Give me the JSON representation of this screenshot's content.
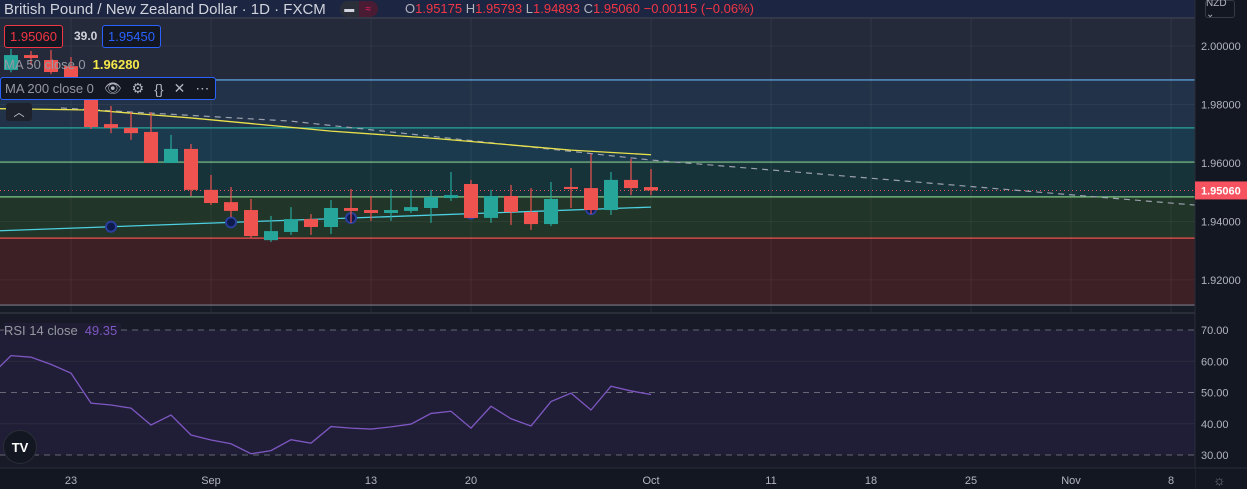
{
  "header": {
    "title": "British Pound / New Zealand Dollar · 1D · FXCM",
    "ohlc": {
      "o_label": "O",
      "o": "1.95175",
      "h_label": "H",
      "h": "1.95793",
      "l_label": "L",
      "l": "1.94893",
      "c_label": "C",
      "c": "1.95060",
      "change": "−0.00115 (−0.06%)"
    },
    "currency_button": "NZD ⌄"
  },
  "legend": {
    "sell_price": "1.95060",
    "spread": "39.0",
    "buy_price": "1.95450",
    "ma50": {
      "label": "MA 50 close 0",
      "value": "1.96280"
    },
    "ma200": {
      "label": "MA 200 close 0"
    },
    "rsi": {
      "label": "RSI 14 close",
      "value": "49.35"
    }
  },
  "colors": {
    "up": "#26a69a",
    "down": "#ef5350",
    "ma50": "#e9e24b",
    "ma200": "#4dd0e1",
    "rsi": "#7e57c2",
    "price_badge": "#f7525f"
  },
  "chart_data": [
    {
      "type": "candlestick",
      "title": "British Pound / New Zealand Dollar · 1D · FXCM",
      "price_axis": {
        "ticks": [
          "2.00000",
          "1.98000",
          "1.96000",
          "1.94000",
          "1.92000"
        ],
        "tick_values": [
          2.0,
          1.98,
          1.96,
          1.94,
          1.92
        ],
        "current_price": "1.95060",
        "current_value": 1.9506
      },
      "x_axis": {
        "labels": [
          {
            "text": "23",
            "index": 4
          },
          {
            "text": "Sep",
            "index": 11
          },
          {
            "text": "13",
            "index": 19
          },
          {
            "text": "20",
            "index": 24
          },
          {
            "text": "Oct",
            "index": 33
          },
          {
            "text": "11",
            "index": 39
          },
          {
            "text": "18",
            "index": 44
          },
          {
            "text": "25",
            "index": 49
          },
          {
            "text": "Nov",
            "index": 54
          },
          {
            "text": "8",
            "index": 59
          }
        ]
      },
      "candles": [
        {
          "i": 1,
          "o": 1.9918,
          "h": 1.999,
          "l": 1.991,
          "c": 1.9969
        },
        {
          "i": 2,
          "o": 1.9969,
          "h": 1.9983,
          "l": 1.9935,
          "c": 1.9959
        },
        {
          "i": 3,
          "o": 1.9952,
          "h": 1.9986,
          "l": 1.9904,
          "c": 1.9911
        },
        {
          "i": 4,
          "o": 1.9931,
          "h": 1.9962,
          "l": 1.986,
          "c": 1.989
        },
        {
          "i": 5,
          "o": 1.9829,
          "h": 1.9836,
          "l": 1.9716,
          "c": 1.9723
        },
        {
          "i": 6,
          "o": 1.9733,
          "h": 1.9795,
          "l": 1.9702,
          "c": 1.972
        },
        {
          "i": 7,
          "o": 1.972,
          "h": 1.9774,
          "l": 1.9679,
          "c": 1.9702
        },
        {
          "i": 8,
          "o": 1.9706,
          "h": 1.9774,
          "l": 1.96,
          "c": 1.96
        },
        {
          "i": 9,
          "o": 1.96,
          "h": 1.9696,
          "l": 1.96,
          "c": 1.9648
        },
        {
          "i": 10,
          "o": 1.9648,
          "h": 1.9665,
          "l": 1.9487,
          "c": 1.9508
        },
        {
          "i": 11,
          "o": 1.9508,
          "h": 1.9559,
          "l": 1.9456,
          "c": 1.9463
        },
        {
          "i": 12,
          "o": 1.9466,
          "h": 1.9518,
          "l": 1.9415,
          "c": 1.9436
        },
        {
          "i": 13,
          "o": 1.9439,
          "h": 1.9477,
          "l": 1.9343,
          "c": 1.935
        },
        {
          "i": 14,
          "o": 1.9336,
          "h": 1.9419,
          "l": 1.933,
          "c": 1.9367
        },
        {
          "i": 15,
          "o": 1.9364,
          "h": 1.9449,
          "l": 1.9354,
          "c": 1.9408
        },
        {
          "i": 16,
          "o": 1.9408,
          "h": 1.9425,
          "l": 1.9354,
          "c": 1.9381
        },
        {
          "i": 17,
          "o": 1.9381,
          "h": 1.9473,
          "l": 1.9357,
          "c": 1.9446
        },
        {
          "i": 18,
          "o": 1.9446,
          "h": 1.9511,
          "l": 1.9395,
          "c": 1.9436
        },
        {
          "i": 19,
          "o": 1.9439,
          "h": 1.9487,
          "l": 1.9402,
          "c": 1.9429
        },
        {
          "i": 20,
          "o": 1.9429,
          "h": 1.9511,
          "l": 1.9402,
          "c": 1.9439
        },
        {
          "i": 21,
          "o": 1.9436,
          "h": 1.9508,
          "l": 1.9429,
          "c": 1.9449
        },
        {
          "i": 22,
          "o": 1.9446,
          "h": 1.9508,
          "l": 1.9395,
          "c": 1.9484
        },
        {
          "i": 23,
          "o": 1.948,
          "h": 1.9569,
          "l": 1.947,
          "c": 1.949
        },
        {
          "i": 24,
          "o": 1.9528,
          "h": 1.9542,
          "l": 1.9412,
          "c": 1.9412
        },
        {
          "i": 25,
          "o": 1.9412,
          "h": 1.9508,
          "l": 1.9395,
          "c": 1.9487
        },
        {
          "i": 26,
          "o": 1.9487,
          "h": 1.9525,
          "l": 1.9388,
          "c": 1.9432
        },
        {
          "i": 27,
          "o": 1.9432,
          "h": 1.9514,
          "l": 1.9371,
          "c": 1.9391
        },
        {
          "i": 28,
          "o": 1.9391,
          "h": 1.9535,
          "l": 1.9384,
          "c": 1.9477
        },
        {
          "i": 29,
          "o": 1.9518,
          "h": 1.9583,
          "l": 1.9446,
          "c": 1.9511
        },
        {
          "i": 30,
          "o": 1.9514,
          "h": 1.9631,
          "l": 1.9425,
          "c": 1.9439
        },
        {
          "i": 31,
          "o": 1.9439,
          "h": 1.9569,
          "l": 1.9422,
          "c": 1.9542
        },
        {
          "i": 32,
          "o": 1.9542,
          "h": 1.9614,
          "l": 1.949,
          "c": 1.9514
        },
        {
          "i": 33,
          "o": 1.95175,
          "h": 1.95793,
          "l": 1.94893,
          "c": 1.9506
        }
      ],
      "ma50": [
        [
          0,
          1.9786
        ],
        [
          5,
          1.9781
        ],
        [
          10,
          1.9754
        ],
        [
          17,
          1.9709
        ],
        [
          22,
          1.9685
        ],
        [
          29,
          1.9644
        ],
        [
          33,
          1.9628
        ]
      ],
      "ma200": [
        [
          0,
          1.9367
        ],
        [
          33,
          1.9449
        ]
      ],
      "ma200_markers": [
        6,
        12,
        18,
        24,
        30
      ],
      "trendline": [
        [
          3.5,
          1.9788
        ],
        [
          15,
          1.9743
        ],
        [
          33,
          1.961
        ],
        [
          60.2,
          1.9456
        ]
      ],
      "levels": [
        2.0096,
        1.9884,
        1.972,
        1.9603,
        1.9484,
        1.9343,
        1.9114
      ]
    },
    {
      "type": "line",
      "title": "RSI 14 close",
      "y_ticks": [
        "70.00",
        "60.00",
        "50.00",
        "40.00",
        "30.00"
      ],
      "y_tick_values": [
        70,
        60,
        50,
        40,
        30
      ],
      "bands": [
        70,
        50,
        30
      ],
      "values": [
        55.5,
        61.8,
        61.3,
        59.0,
        56.2,
        46.6,
        46.0,
        45.0,
        39.6,
        42.8,
        36.4,
        34.8,
        33.6,
        30.4,
        31.4,
        34.9,
        33.8,
        39.1,
        38.6,
        38.3,
        39.0,
        39.9,
        43.3,
        44.0,
        38.6,
        45.6,
        41.6,
        39.3,
        47.1,
        49.8,
        44.4,
        52.0,
        50.5,
        49.35
      ]
    }
  ]
}
